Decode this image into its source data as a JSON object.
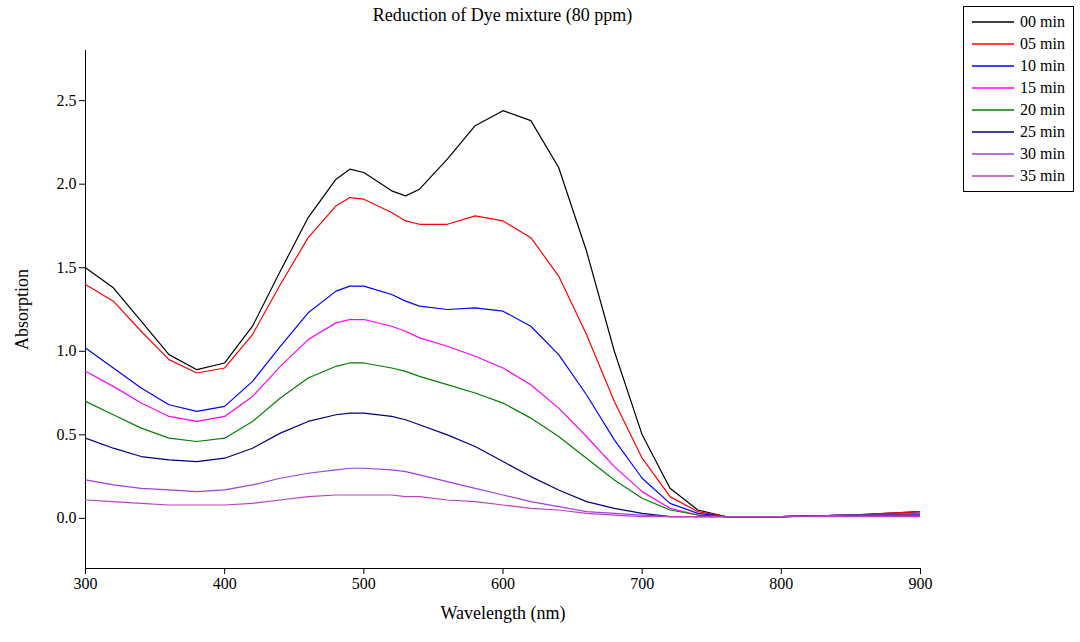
{
  "chart_data": {
    "type": "line",
    "title": "Reduction of Dye mixture (80 ppm)",
    "x_label": "Wavelength (nm)",
    "y_label": "Absorption",
    "x": [
      300,
      320,
      340,
      360,
      380,
      400,
      420,
      440,
      460,
      480,
      490,
      500,
      520,
      530,
      540,
      560,
      580,
      600,
      620,
      640,
      660,
      680,
      700,
      720,
      740,
      760,
      780,
      800,
      850,
      900
    ],
    "series": [
      {
        "name": "00 min",
        "color": "#000000",
        "values": [
          1.5,
          1.38,
          1.18,
          0.98,
          0.89,
          0.93,
          1.15,
          1.48,
          1.8,
          2.03,
          2.09,
          2.07,
          1.96,
          1.93,
          1.97,
          2.15,
          2.35,
          2.44,
          2.38,
          2.1,
          1.6,
          1.0,
          0.5,
          0.18,
          0.05,
          0.01,
          0.01,
          0.01,
          0.02,
          0.04
        ]
      },
      {
        "name": "05 min",
        "color": "#ff0000",
        "values": [
          1.4,
          1.3,
          1.12,
          0.95,
          0.87,
          0.9,
          1.1,
          1.4,
          1.68,
          1.87,
          1.92,
          1.91,
          1.83,
          1.78,
          1.76,
          1.76,
          1.81,
          1.78,
          1.68,
          1.45,
          1.1,
          0.7,
          0.36,
          0.13,
          0.04,
          0.01,
          0.01,
          0.01,
          0.02,
          0.04
        ]
      },
      {
        "name": "10 min",
        "color": "#0000ff",
        "values": [
          1.02,
          0.9,
          0.78,
          0.68,
          0.64,
          0.67,
          0.82,
          1.03,
          1.23,
          1.36,
          1.39,
          1.39,
          1.34,
          1.3,
          1.27,
          1.25,
          1.26,
          1.24,
          1.15,
          0.98,
          0.74,
          0.47,
          0.24,
          0.09,
          0.03,
          0.01,
          0.01,
          0.01,
          0.02,
          0.03
        ]
      },
      {
        "name": "15 min",
        "color": "#ff00ff",
        "values": [
          0.88,
          0.79,
          0.69,
          0.61,
          0.58,
          0.61,
          0.73,
          0.91,
          1.07,
          1.17,
          1.19,
          1.19,
          1.15,
          1.12,
          1.08,
          1.03,
          0.97,
          0.9,
          0.8,
          0.66,
          0.49,
          0.31,
          0.16,
          0.06,
          0.02,
          0.01,
          0.01,
          0.01,
          0.02,
          0.03
        ]
      },
      {
        "name": "20 min",
        "color": "#008000",
        "values": [
          0.7,
          0.62,
          0.54,
          0.48,
          0.46,
          0.48,
          0.58,
          0.72,
          0.84,
          0.91,
          0.93,
          0.93,
          0.9,
          0.88,
          0.85,
          0.8,
          0.75,
          0.69,
          0.6,
          0.49,
          0.36,
          0.23,
          0.12,
          0.05,
          0.02,
          0.01,
          0.01,
          0.01,
          0.02,
          0.02
        ]
      },
      {
        "name": "25 min",
        "color": "#000080",
        "values": [
          0.48,
          0.42,
          0.37,
          0.35,
          0.34,
          0.36,
          0.42,
          0.51,
          0.58,
          0.62,
          0.63,
          0.63,
          0.61,
          0.59,
          0.56,
          0.5,
          0.43,
          0.34,
          0.25,
          0.17,
          0.1,
          0.06,
          0.03,
          0.01,
          0.01,
          0.01,
          0.01,
          0.01,
          0.02,
          0.02
        ]
      },
      {
        "name": "30 min",
        "color": "#a040e0",
        "values": [
          0.23,
          0.2,
          0.18,
          0.17,
          0.16,
          0.17,
          0.2,
          0.24,
          0.27,
          0.29,
          0.3,
          0.3,
          0.29,
          0.28,
          0.26,
          0.22,
          0.18,
          0.14,
          0.1,
          0.07,
          0.04,
          0.03,
          0.02,
          0.01,
          0.01,
          0.01,
          0.01,
          0.01,
          0.02,
          0.02
        ]
      },
      {
        "name": "35 min",
        "color": "#c040c0",
        "values": [
          0.11,
          0.1,
          0.09,
          0.08,
          0.08,
          0.08,
          0.09,
          0.11,
          0.13,
          0.14,
          0.14,
          0.14,
          0.14,
          0.13,
          0.13,
          0.11,
          0.1,
          0.08,
          0.06,
          0.05,
          0.03,
          0.02,
          0.01,
          0.01,
          0.01,
          0.01,
          0.01,
          0.01,
          0.01,
          0.01
        ]
      }
    ],
    "xlim": [
      300,
      900
    ],
    "xticks": [
      300,
      400,
      500,
      600,
      700,
      800,
      900
    ],
    "ylim": [
      -0.3,
      2.8
    ],
    "yticks": [
      {
        "value": 0,
        "label": "0.0"
      },
      {
        "value": 0.5,
        "label": "0.5"
      },
      {
        "value": 1,
        "label": "1.0"
      },
      {
        "value": 1.5,
        "label": "1.5"
      },
      {
        "value": 2,
        "label": "2.0"
      },
      {
        "value": 2.5,
        "label": "2.5"
      }
    ],
    "legend": "top-right",
    "grid": false
  }
}
